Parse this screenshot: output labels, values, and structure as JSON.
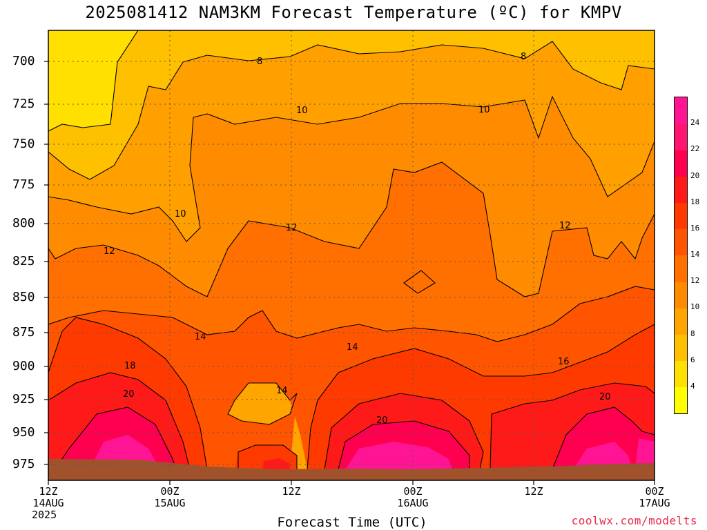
{
  "title": "2025081412 NAM3KM Forecast Temperature (ºC) for KMPV",
  "xlabel": "Forecast Time (UTC)",
  "credit": "coolwx.com/modelts",
  "y_ticks": [
    "700",
    "725",
    "750",
    "775",
    "800",
    "825",
    "850",
    "875",
    "900",
    "925",
    "950",
    "975"
  ],
  "x_ticks": [
    {
      "line1": "12Z",
      "line2": "14AUG",
      "line3": "2025"
    },
    {
      "line1": "00Z",
      "line2": "15AUG",
      "line3": ""
    },
    {
      "line1": "12Z",
      "line2": "",
      "line3": ""
    },
    {
      "line1": "00Z",
      "line2": "16AUG",
      "line3": ""
    },
    {
      "line1": "12Z",
      "line2": "",
      "line3": ""
    },
    {
      "line1": "00Z",
      "line2": "17AUG",
      "line3": ""
    }
  ],
  "contour_labels": [
    "8",
    "8",
    "10",
    "10",
    "10",
    "12",
    "12",
    "12",
    "14",
    "14",
    "14",
    "16",
    "18",
    "20",
    "20",
    "20"
  ],
  "colorbar": {
    "labels": [
      "4",
      "6",
      "8",
      "10",
      "12",
      "14",
      "16",
      "18",
      "20",
      "22",
      "24"
    ],
    "colors": [
      "#ffff00",
      "#ffe000",
      "#ffc000",
      "#ffa500",
      "#ff8c00",
      "#ff7000",
      "#ff5500",
      "#ff3a00",
      "#ff1a1a",
      "#ff0050",
      "#ff1470",
      "#ff1493"
    ]
  },
  "chart_data": {
    "type": "heatmap",
    "title": "2025081412 NAM3KM Forecast Temperature (ºC) for KMPV",
    "xlabel": "Forecast Time (UTC)",
    "ylabel": "",
    "x_categories": [
      "12Z 14AUG 2025",
      "00Z 15AUG",
      "12Z",
      "00Z 16AUG",
      "12Z",
      "00Z 17AUG"
    ],
    "y_levels_hpa": [
      700,
      725,
      750,
      775,
      800,
      825,
      850,
      875,
      900,
      925,
      950,
      975
    ],
    "ylim": [
      680,
      985
    ],
    "y_inverted": true,
    "colorbar_levels_c": [
      4,
      6,
      8,
      10,
      12,
      14,
      16,
      18,
      20,
      22,
      24
    ],
    "contour_levels_c": [
      8,
      10,
      12,
      14,
      16,
      18,
      20
    ],
    "grid": true,
    "ground": "brown band at surface (~975 hPa)",
    "temperature_c_grid": {
      "x": [
        "12Z 14AUG",
        "00Z 15AUG",
        "12Z",
        "00Z 16AUG",
        "12Z",
        "00Z 17AUG"
      ],
      "levels": [
        700,
        750,
        800,
        850,
        900,
        950
      ],
      "values": [
        [
          5,
          8,
          8,
          8,
          8,
          8
        ],
        [
          7,
          9,
          10,
          11,
          10,
          9
        ],
        [
          10,
          10,
          12,
          13,
          12,
          11
        ],
        [
          12,
          13,
          13,
          13,
          13,
          12
        ],
        [
          16,
          15,
          14,
          15,
          15,
          16
        ],
        [
          21,
          18,
          13,
          21,
          16,
          21
        ]
      ]
    }
  }
}
